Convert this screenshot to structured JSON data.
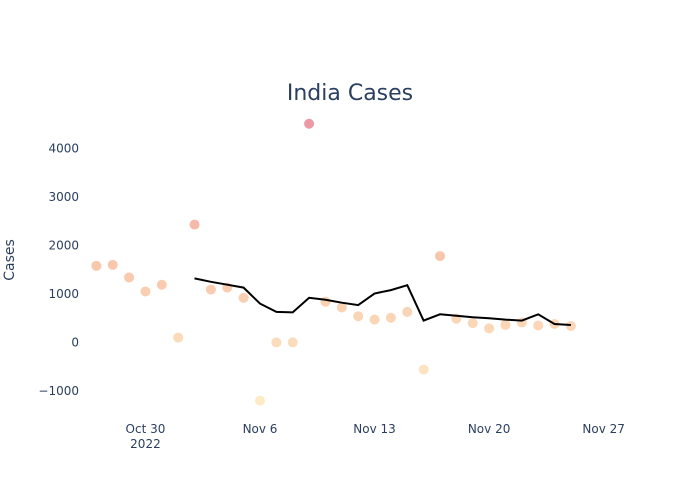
{
  "chart_data": {
    "type": "scatter",
    "title": "India Cases",
    "xlabel": "",
    "ylabel": "Cases",
    "x_tick_labels": [
      {
        "date": "2022-10-30",
        "label": "Oct 30",
        "sub": "2022"
      },
      {
        "date": "2022-11-06",
        "label": "Nov 6"
      },
      {
        "date": "2022-11-13",
        "label": "Nov 13"
      },
      {
        "date": "2022-11-20",
        "label": "Nov 20"
      },
      {
        "date": "2022-11-27",
        "label": "Nov 27"
      }
    ],
    "y_ticks": [
      -1000,
      0,
      1000,
      2000,
      3000,
      4000
    ],
    "y_tick_labels": [
      "−1000",
      "0",
      "1000",
      "2000",
      "3000",
      "4000"
    ],
    "xlim": [
      "2022-10-26",
      "2022-11-28"
    ],
    "ylim": [
      -1600,
      5000
    ],
    "grid": false,
    "legend": "none",
    "points": [
      {
        "date": "2022-10-27",
        "cases": 1580
      },
      {
        "date": "2022-10-28",
        "cases": 1600
      },
      {
        "date": "2022-10-29",
        "cases": 1340
      },
      {
        "date": "2022-10-30",
        "cases": 1050
      },
      {
        "date": "2022-10-31",
        "cases": 1190
      },
      {
        "date": "2022-11-01",
        "cases": 100
      },
      {
        "date": "2022-11-02",
        "cases": 2430
      },
      {
        "date": "2022-11-03",
        "cases": 1090
      },
      {
        "date": "2022-11-04",
        "cases": 1130
      },
      {
        "date": "2022-11-05",
        "cases": 920
      },
      {
        "date": "2022-11-06",
        "cases": -1200
      },
      {
        "date": "2022-11-07",
        "cases": 0
      },
      {
        "date": "2022-11-08",
        "cases": 0
      },
      {
        "date": "2022-11-09",
        "cases": 4510
      },
      {
        "date": "2022-11-10",
        "cases": 840
      },
      {
        "date": "2022-11-11",
        "cases": 720
      },
      {
        "date": "2022-11-12",
        "cases": 540
      },
      {
        "date": "2022-11-13",
        "cases": 470
      },
      {
        "date": "2022-11-14",
        "cases": 510
      },
      {
        "date": "2022-11-15",
        "cases": 630
      },
      {
        "date": "2022-11-16",
        "cases": -560
      },
      {
        "date": "2022-11-17",
        "cases": 1780
      },
      {
        "date": "2022-11-18",
        "cases": 490
      },
      {
        "date": "2022-11-19",
        "cases": 400
      },
      {
        "date": "2022-11-20",
        "cases": 290
      },
      {
        "date": "2022-11-21",
        "cases": 360
      },
      {
        "date": "2022-11-22",
        "cases": 410
      },
      {
        "date": "2022-11-23",
        "cases": 350
      },
      {
        "date": "2022-11-24",
        "cases": 380
      },
      {
        "date": "2022-11-25",
        "cases": 340
      }
    ],
    "trend": [
      {
        "date": "2022-11-02",
        "cases": 1320
      },
      {
        "date": "2022-11-03",
        "cases": 1250
      },
      {
        "date": "2022-11-04",
        "cases": 1190
      },
      {
        "date": "2022-11-05",
        "cases": 1130
      },
      {
        "date": "2022-11-06",
        "cases": 800
      },
      {
        "date": "2022-11-07",
        "cases": 630
      },
      {
        "date": "2022-11-08",
        "cases": 620
      },
      {
        "date": "2022-11-09",
        "cases": 920
      },
      {
        "date": "2022-11-10",
        "cases": 880
      },
      {
        "date": "2022-11-11",
        "cases": 820
      },
      {
        "date": "2022-11-12",
        "cases": 770
      },
      {
        "date": "2022-11-13",
        "cases": 1010
      },
      {
        "date": "2022-11-14",
        "cases": 1080
      },
      {
        "date": "2022-11-15",
        "cases": 1180
      },
      {
        "date": "2022-11-16",
        "cases": 450
      },
      {
        "date": "2022-11-17",
        "cases": 580
      },
      {
        "date": "2022-11-18",
        "cases": 550
      },
      {
        "date": "2022-11-19",
        "cases": 520
      },
      {
        "date": "2022-11-20",
        "cases": 500
      },
      {
        "date": "2022-11-21",
        "cases": 470
      },
      {
        "date": "2022-11-22",
        "cases": 450
      },
      {
        "date": "2022-11-23",
        "cases": 580
      },
      {
        "date": "2022-11-24",
        "cases": 380
      },
      {
        "date": "2022-11-25",
        "cases": 360
      }
    ],
    "colors": {
      "text": "#2a3f5f",
      "trend_line": "#000000",
      "point_low": "#fde6b8",
      "point_mid": "#f7b896",
      "point_high": "#e8808f"
    }
  }
}
